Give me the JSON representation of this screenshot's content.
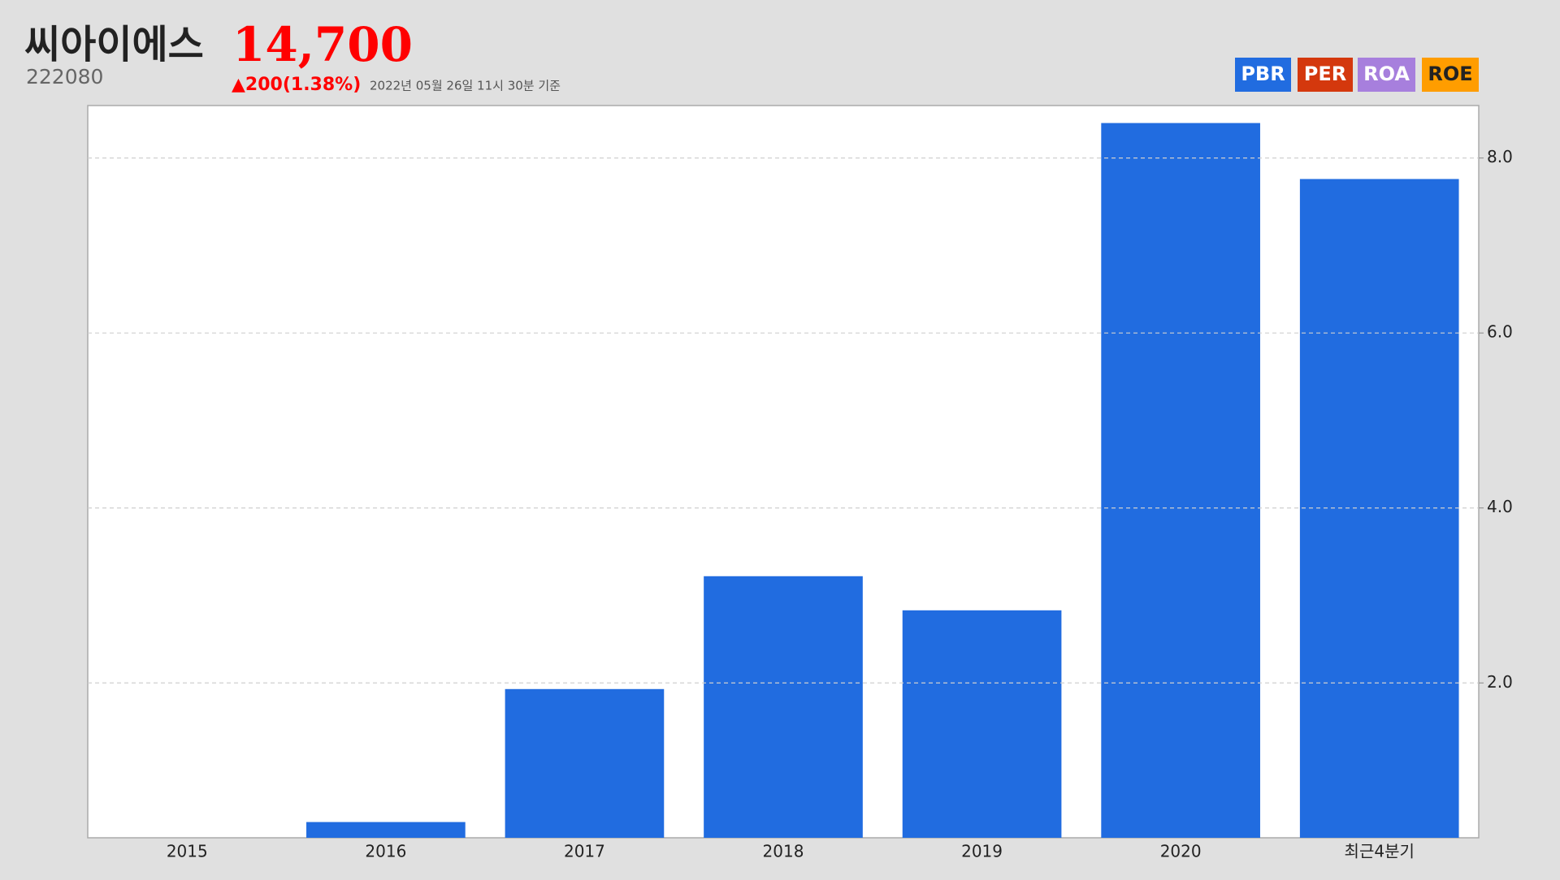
{
  "header": {
    "name": "씨아이에스",
    "code": "222080",
    "price": "14,700",
    "change": "▲200(1.38%)",
    "timestamp": "2022년 05월 26일 11시 30분 기준"
  },
  "tabs": [
    {
      "label": "PBR",
      "color": "#216ce0"
    },
    {
      "label": "PER",
      "color": "#d4380d"
    },
    {
      "label": "ROA",
      "color": "#a77fdd"
    },
    {
      "label": "ROE",
      "color": "#ff9d00"
    }
  ],
  "chart_data": {
    "type": "bar",
    "categories": [
      "2015",
      "2016",
      "2017",
      "2018",
      "2019",
      "2020",
      "최근4분기"
    ],
    "values": [
      0,
      0.41,
      1.93,
      3.22,
      2.83,
      8.4,
      7.76
    ],
    "color": "#216ce0",
    "ylim": [
      0.23,
      8.6
    ],
    "yticks": [
      {
        "value": 2,
        "label": "2.0"
      },
      {
        "value": 4,
        "label": "4.0"
      },
      {
        "value": 6,
        "label": "6.0"
      },
      {
        "value": 8,
        "label": "8.0"
      }
    ],
    "grid": true
  }
}
